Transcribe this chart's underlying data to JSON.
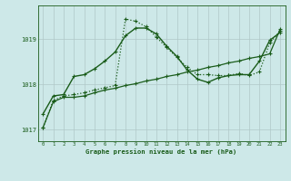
{
  "title": "Graphe pression niveau de la mer (hPa)",
  "background_color": "#cde8e8",
  "grid_color": "#b0c8c8",
  "line_color": "#1a5c1a",
  "ylim": [
    1016.75,
    1019.75
  ],
  "yticks": [
    1017,
    1018,
    1019
  ],
  "xlim": [
    -0.5,
    23.5
  ],
  "xticks": [
    0,
    1,
    2,
    3,
    4,
    5,
    6,
    7,
    8,
    9,
    10,
    11,
    12,
    13,
    14,
    15,
    16,
    17,
    18,
    19,
    20,
    21,
    22,
    23
  ],
  "series": [
    {
      "y": [
        1017.05,
        1017.65,
        1017.75,
        1017.78,
        1017.82,
        1017.88,
        1017.93,
        1017.98,
        1019.45,
        1019.4,
        1019.28,
        1019.05,
        1018.82,
        1018.6,
        1018.38,
        1018.22,
        1018.22,
        1018.2,
        1018.2,
        1018.25,
        1018.2,
        1018.28,
        1018.92,
        1019.18
      ],
      "style": "dotted",
      "lw": 0.9
    },
    {
      "y": [
        1017.35,
        1017.75,
        1017.78,
        1018.18,
        1018.22,
        1018.35,
        1018.52,
        1018.72,
        1019.08,
        1019.25,
        1019.25,
        1019.12,
        1018.85,
        1018.62,
        1018.32,
        1018.12,
        1018.05,
        1018.15,
        1018.2,
        1018.22,
        1018.22,
        1018.52,
        1018.98,
        1019.15
      ],
      "style": "solid",
      "lw": 1.0
    },
    {
      "y": [
        1017.05,
        1017.62,
        1017.72,
        1017.72,
        1017.75,
        1017.82,
        1017.88,
        1017.92,
        1017.98,
        1018.02,
        1018.08,
        1018.12,
        1018.18,
        1018.22,
        1018.28,
        1018.32,
        1018.38,
        1018.42,
        1018.48,
        1018.52,
        1018.58,
        1018.62,
        1018.68,
        1019.22
      ],
      "style": "solid",
      "lw": 0.9
    }
  ]
}
